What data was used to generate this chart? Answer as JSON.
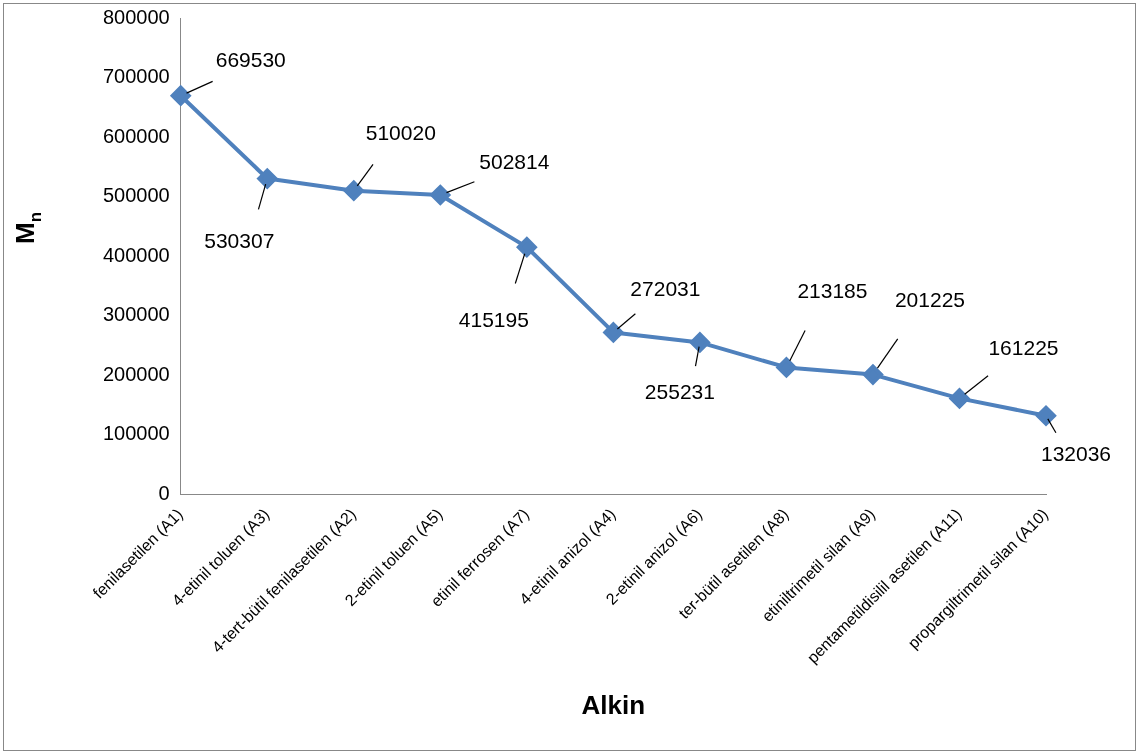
{
  "chart_data": {
    "type": "line",
    "xlabel": "Alkin",
    "ylabel": "M$_{n}$",
    "categories": [
      "fenilasetilen (A1)",
      "4-etinil toluen (A3)",
      "4-tert-bütil fenilasetilen (A2)",
      "2-etinil toluen (A5)",
      "etinil ferrosen (A7)",
      "4-etinil anizol (A4)",
      "2-etinil anizol (A6)",
      "ter-bütil asetilen (A8)",
      "etiniltrimetil silan (A9)",
      "pentametildisilil asetilen (A11)",
      "propargiltrimetil silan (A10)"
    ],
    "values": [
      669530,
      530307,
      510020,
      502814,
      415195,
      272031,
      255231,
      213185,
      201225,
      161225,
      132036
    ],
    "color": "#4f81bd",
    "marker": "diamond",
    "line_style": "solid",
    "data_labels": true,
    "grid": false,
    "legend": false,
    "ylim": [
      0,
      800000
    ],
    "yticks": [
      0,
      100000,
      200000,
      300000,
      400000,
      500000,
      600000,
      700000,
      800000
    ]
  }
}
